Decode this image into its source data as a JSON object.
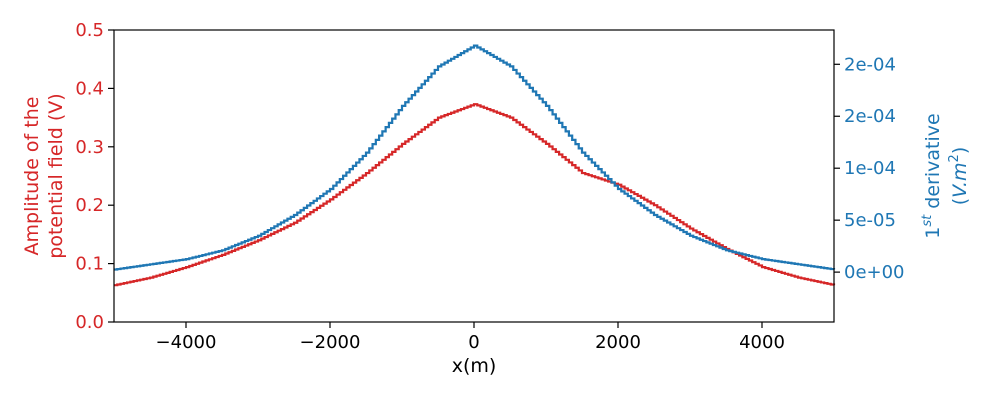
{
  "chart_data": {
    "type": "line",
    "xlabel": "x(m)",
    "ylabel_left": [
      "Amplitude of the",
      "potential field (V)"
    ],
    "ylabel_right": {
      "line1_main": "1",
      "line1_sup": "st",
      "line1_rest": " derivative",
      "line2_open": "(",
      "line2_italic": "V.m",
      "line2_sup": "2",
      "line2_close": ")"
    },
    "xlim": [
      -5000,
      5000
    ],
    "ylim_left": [
      0.0,
      0.5
    ],
    "ylim_right": [
      -4.8e-05,
      0.000233
    ],
    "x_ticks": [
      {
        "value": -4000,
        "label": "−4000"
      },
      {
        "value": -2000,
        "label": "−2000"
      },
      {
        "value": 0,
        "label": "0"
      },
      {
        "value": 2000,
        "label": "2000"
      },
      {
        "value": 4000,
        "label": "4000"
      }
    ],
    "y_ticks_left": [
      {
        "value": 0.0,
        "label": "0.0"
      },
      {
        "value": 0.1,
        "label": "0.1"
      },
      {
        "value": 0.2,
        "label": "0.2"
      },
      {
        "value": 0.3,
        "label": "0.3"
      },
      {
        "value": 0.4,
        "label": "0.4"
      },
      {
        "value": 0.5,
        "label": "0.5"
      }
    ],
    "y_ticks_right": [
      {
        "value": 0.0,
        "label": "0e+00"
      },
      {
        "value": 5e-05,
        "label": "5e-05"
      },
      {
        "value": 0.0001,
        "label": "1e-04"
      },
      {
        "value": 0.00015,
        "label": "2e-04"
      },
      {
        "value": 0.0002,
        "label": "2e-04"
      }
    ],
    "colors": {
      "left_axis": "#d62728",
      "right_axis": "#1f77b4"
    },
    "series": [
      {
        "axis": "left",
        "color": "#d62728",
        "x": [
          -5000,
          -4500,
          -4000,
          -3500,
          -3000,
          -2500,
          -2000,
          -1500,
          -1000,
          -500,
          0,
          500,
          1000,
          1500,
          2000,
          2500,
          3000,
          3500,
          4000,
          4500,
          5000
        ],
        "y": [
          0.063,
          0.076,
          0.094,
          0.115,
          0.14,
          0.17,
          0.21,
          0.255,
          0.305,
          0.35,
          0.373,
          0.35,
          0.305,
          0.255,
          0.235,
          0.2,
          0.16,
          0.125,
          0.094,
          0.076,
          0.063
        ]
      },
      {
        "axis": "right",
        "color": "#1f77b4",
        "x": [
          -5000,
          -4500,
          -4000,
          -3500,
          -3000,
          -2500,
          -2000,
          -1500,
          -1000,
          -500,
          0,
          500,
          1000,
          1500,
          2000,
          2500,
          3000,
          3500,
          4000,
          4500,
          5000
        ],
        "y": [
          2.5e-06,
          7.5e-06,
          1.25e-05,
          2.1e-05,
          3.5e-05,
          5.5e-05,
          8e-05,
          0.000115,
          0.00016,
          0.000198,
          0.000218,
          0.000198,
          0.00016,
          0.000115,
          8e-05,
          5.5e-05,
          3.5e-05,
          2.1e-05,
          1.25e-05,
          7.5e-06,
          2.5e-06
        ]
      }
    ]
  }
}
